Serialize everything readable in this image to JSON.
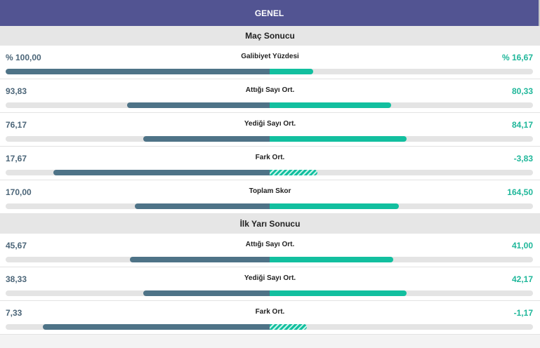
{
  "header": {
    "title": "GENEL"
  },
  "scale_center": 376,
  "sections": [
    {
      "title": "Maç Sonucu",
      "rows": [
        {
          "label": "Galibiyet Yüzdesi",
          "left": "% 100,00",
          "right": "% 16,67",
          "left_fill": 1.0,
          "right_fill": 0.165,
          "right_negative": false
        },
        {
          "label": "Attığı Sayı Ort.",
          "left": "93,83",
          "right": "80,33",
          "left_fill": 0.54,
          "right_fill": 0.46,
          "right_negative": false
        },
        {
          "label": "Yediği Sayı Ort.",
          "left": "76,17",
          "right": "84,17",
          "left_fill": 0.48,
          "right_fill": 0.52,
          "right_negative": false
        },
        {
          "label": "Fark Ort.",
          "left": "17,67",
          "right": "-3,83",
          "left_fill": 0.82,
          "right_fill": 0.18,
          "right_negative": true
        },
        {
          "label": "Toplam Skor",
          "left": "170,00",
          "right": "164,50",
          "left_fill": 0.51,
          "right_fill": 0.49,
          "right_negative": false
        }
      ]
    },
    {
      "title": "İlk Yarı Sonucu",
      "rows": [
        {
          "label": "Attığı Sayı Ort.",
          "left": "45,67",
          "right": "41,00",
          "left_fill": 0.53,
          "right_fill": 0.47,
          "right_negative": false
        },
        {
          "label": "Yediği Sayı Ort.",
          "left": "38,33",
          "right": "42,17",
          "left_fill": 0.48,
          "right_fill": 0.52,
          "right_negative": false
        },
        {
          "label": "Fark Ort.",
          "left": "7,33",
          "right": "-1,17",
          "left_fill": 0.86,
          "right_fill": 0.14,
          "right_negative": true
        }
      ]
    }
  ]
}
